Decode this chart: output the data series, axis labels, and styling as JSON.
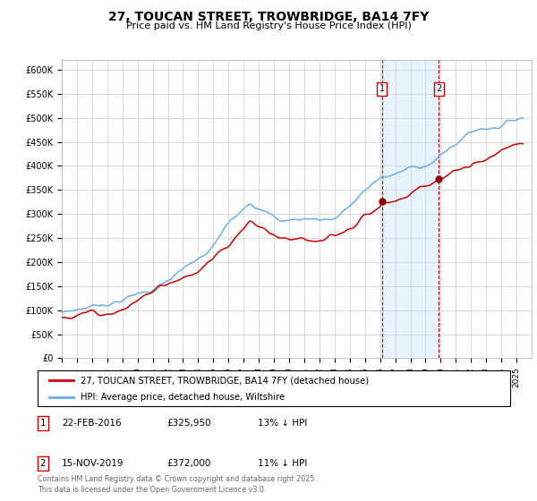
{
  "title": "27, TOUCAN STREET, TROWBRIDGE, BA14 7FY",
  "subtitle": "Price paid vs. HM Land Registry's House Price Index (HPI)",
  "title_fontsize": 10,
  "subtitle_fontsize": 8,
  "ylabel_ticks": [
    "£0",
    "£50K",
    "£100K",
    "£150K",
    "£200K",
    "£250K",
    "£300K",
    "£350K",
    "£400K",
    "£450K",
    "£500K",
    "£550K",
    "£600K"
  ],
  "ytick_values": [
    0,
    50000,
    100000,
    150000,
    200000,
    250000,
    300000,
    350000,
    400000,
    450000,
    500000,
    550000,
    600000
  ],
  "ylim": [
    0,
    620000
  ],
  "hpi_color": "#6AAFE6",
  "price_color": "#CC0000",
  "marker_color": "#8B0000",
  "bg_color": "#FFFFFF",
  "grid_color": "#CCCCCC",
  "annotation_box_color": "#CC0000",
  "shade_color": "#DDEEFF",
  "dashed_line_color": "#CC0000",
  "purchase1_date": 2016.12,
  "purchase1_price": 325950,
  "purchase2_date": 2019.88,
  "purchase2_price": 372000,
  "legend_line1": "27, TOUCAN STREET, TROWBRIDGE, BA14 7FY (detached house)",
  "legend_line2": "HPI: Average price, detached house, Wiltshire",
  "table_row1": [
    "1",
    "22-FEB-2016",
    "£325,950",
    "13% ↓ HPI"
  ],
  "table_row2": [
    "2",
    "15-NOV-2019",
    "£372,000",
    "11% ↓ HPI"
  ],
  "footer": "Contains HM Land Registry data © Crown copyright and database right 2025.\nThis data is licensed under the Open Government Licence v3.0.",
  "xstart": 1995,
  "xend": 2026
}
